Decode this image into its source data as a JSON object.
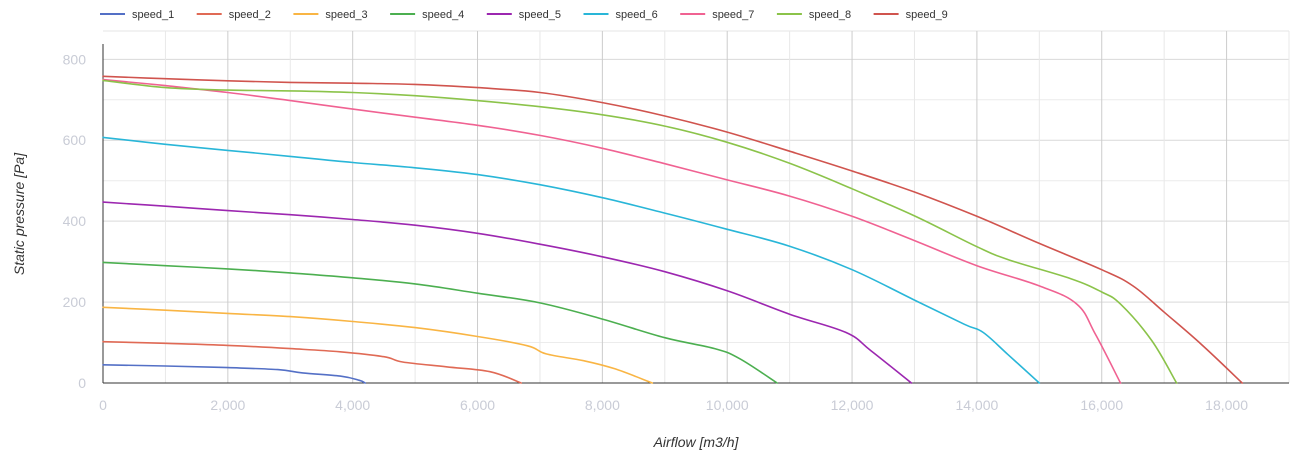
{
  "chart_data": {
    "type": "line",
    "title": "",
    "xlabel": "Airflow [m3/h]",
    "ylabel": "Static pressure [Pa]",
    "xlim": [
      0,
      19000
    ],
    "ylim": [
      0,
      870
    ],
    "x_ticks": [
      0,
      2000,
      4000,
      6000,
      8000,
      10000,
      12000,
      14000,
      16000,
      18000
    ],
    "x_tick_labels": [
      "0",
      "2,000",
      "4,000",
      "6,000",
      "8,000",
      "10,000",
      "12,000",
      "14,000",
      "16,000",
      "18,000"
    ],
    "y_ticks": [
      0,
      200,
      400,
      600,
      800
    ],
    "y_tick_labels": [
      "0",
      "200",
      "400",
      "600",
      "800"
    ],
    "grid": true,
    "legend_position": "top-left",
    "series": [
      {
        "name": "speed_1",
        "color": "#5470c6",
        "points": [
          [
            0,
            45
          ],
          [
            1000,
            42
          ],
          [
            2000,
            38
          ],
          [
            2800,
            33
          ],
          [
            3200,
            25
          ],
          [
            3800,
            17
          ],
          [
            4100,
            7
          ],
          [
            4200,
            0
          ]
        ]
      },
      {
        "name": "speed_2",
        "color": "#e06a55",
        "points": [
          [
            0,
            102
          ],
          [
            1000,
            98
          ],
          [
            2000,
            93
          ],
          [
            3000,
            85
          ],
          [
            3800,
            77
          ],
          [
            4500,
            65
          ],
          [
            4800,
            52
          ],
          [
            5500,
            40
          ],
          [
            6200,
            28
          ],
          [
            6700,
            0
          ]
        ]
      },
      {
        "name": "speed_3",
        "color": "#f9b544",
        "points": [
          [
            0,
            187
          ],
          [
            1000,
            180
          ],
          [
            2000,
            172
          ],
          [
            3000,
            164
          ],
          [
            4000,
            152
          ],
          [
            5000,
            137
          ],
          [
            6000,
            115
          ],
          [
            6800,
            92
          ],
          [
            7100,
            72
          ],
          [
            7700,
            55
          ],
          [
            8200,
            35
          ],
          [
            8800,
            0
          ]
        ]
      },
      {
        "name": "speed_4",
        "color": "#4caf50",
        "points": [
          [
            0,
            298
          ],
          [
            1000,
            290
          ],
          [
            2000,
            282
          ],
          [
            3000,
            272
          ],
          [
            4000,
            260
          ],
          [
            5000,
            245
          ],
          [
            6000,
            222
          ],
          [
            7000,
            198
          ],
          [
            8000,
            158
          ],
          [
            9000,
            112
          ],
          [
            9800,
            85
          ],
          [
            10200,
            60
          ],
          [
            10800,
            0
          ]
        ]
      },
      {
        "name": "speed_5",
        "color": "#9c27b0",
        "points": [
          [
            0,
            447
          ],
          [
            1000,
            437
          ],
          [
            2000,
            426
          ],
          [
            3000,
            416
          ],
          [
            4000,
            404
          ],
          [
            5000,
            390
          ],
          [
            6000,
            370
          ],
          [
            7000,
            343
          ],
          [
            8000,
            312
          ],
          [
            9000,
            275
          ],
          [
            10000,
            228
          ],
          [
            11000,
            170
          ],
          [
            11900,
            125
          ],
          [
            12300,
            80
          ],
          [
            12950,
            0
          ]
        ]
      },
      {
        "name": "speed_6",
        "color": "#29b6d8",
        "points": [
          [
            0,
            607
          ],
          [
            1000,
            590
          ],
          [
            2000,
            575
          ],
          [
            3000,
            560
          ],
          [
            4000,
            545
          ],
          [
            5000,
            532
          ],
          [
            6000,
            515
          ],
          [
            7000,
            490
          ],
          [
            8000,
            458
          ],
          [
            9000,
            420
          ],
          [
            10000,
            380
          ],
          [
            11000,
            338
          ],
          [
            12000,
            280
          ],
          [
            13000,
            205
          ],
          [
            13800,
            145
          ],
          [
            14100,
            125
          ],
          [
            14500,
            70
          ],
          [
            15000,
            0
          ]
        ]
      },
      {
        "name": "speed_7",
        "color": "#f06292",
        "points": [
          [
            0,
            750
          ],
          [
            1000,
            735
          ],
          [
            2000,
            718
          ],
          [
            3000,
            698
          ],
          [
            4000,
            677
          ],
          [
            5000,
            657
          ],
          [
            6000,
            637
          ],
          [
            7000,
            612
          ],
          [
            8000,
            580
          ],
          [
            9000,
            542
          ],
          [
            10000,
            502
          ],
          [
            11000,
            462
          ],
          [
            12000,
            412
          ],
          [
            13000,
            352
          ],
          [
            14000,
            290
          ],
          [
            15000,
            240
          ],
          [
            15600,
            195
          ],
          [
            15900,
            120
          ],
          [
            16300,
            0
          ]
        ]
      },
      {
        "name": "speed_8",
        "color": "#8bc34a",
        "points": [
          [
            0,
            748
          ],
          [
            1000,
            730
          ],
          [
            2000,
            724
          ],
          [
            3000,
            722
          ],
          [
            4000,
            718
          ],
          [
            5000,
            710
          ],
          [
            6000,
            698
          ],
          [
            7000,
            683
          ],
          [
            8000,
            663
          ],
          [
            9000,
            635
          ],
          [
            10000,
            595
          ],
          [
            11000,
            543
          ],
          [
            12000,
            480
          ],
          [
            13000,
            413
          ],
          [
            14000,
            337
          ],
          [
            14500,
            305
          ],
          [
            15500,
            258
          ],
          [
            16000,
            225
          ],
          [
            16300,
            195
          ],
          [
            16800,
            105
          ],
          [
            17200,
            0
          ]
        ]
      },
      {
        "name": "speed_9",
        "color": "#d0544e",
        "points": [
          [
            0,
            758
          ],
          [
            1000,
            752
          ],
          [
            2000,
            747
          ],
          [
            3000,
            743
          ],
          [
            4000,
            741
          ],
          [
            5000,
            738
          ],
          [
            6000,
            730
          ],
          [
            7000,
            718
          ],
          [
            8000,
            693
          ],
          [
            9000,
            660
          ],
          [
            10000,
            620
          ],
          [
            11000,
            573
          ],
          [
            12000,
            524
          ],
          [
            13000,
            472
          ],
          [
            14000,
            412
          ],
          [
            15000,
            345
          ],
          [
            16000,
            280
          ],
          [
            16500,
            240
          ],
          [
            17000,
            175
          ],
          [
            17600,
            95
          ],
          [
            18250,
            0
          ]
        ]
      }
    ]
  }
}
